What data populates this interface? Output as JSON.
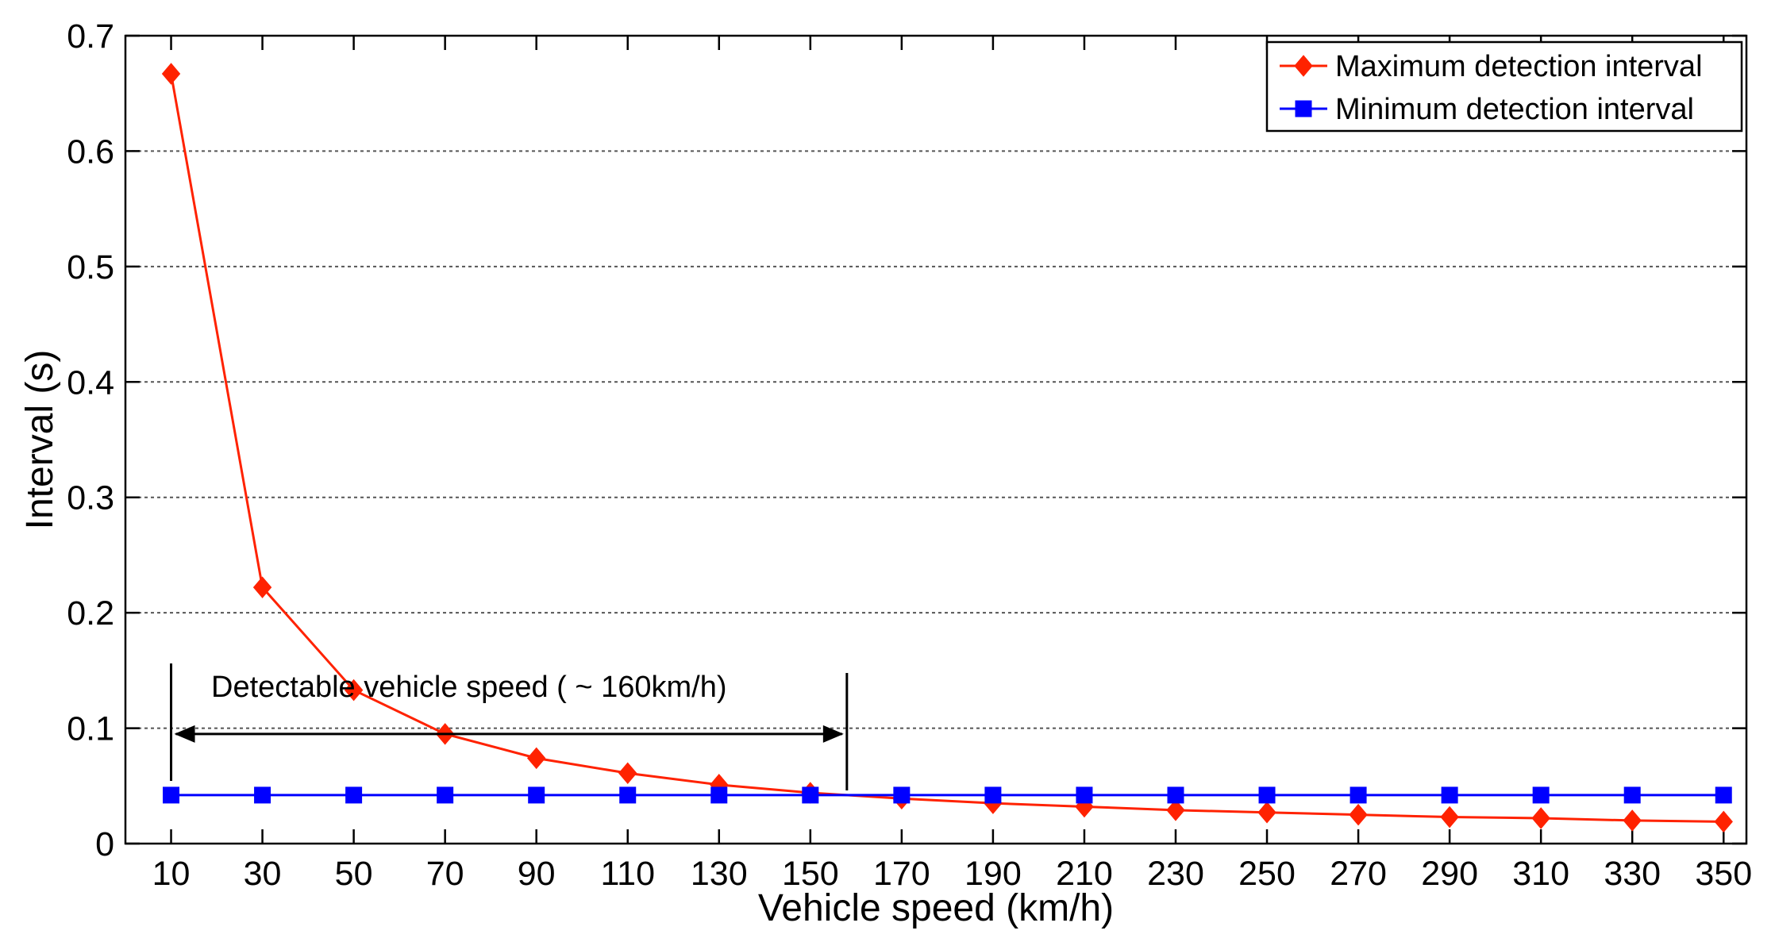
{
  "chart_data": {
    "type": "line",
    "title": "",
    "xlabel": "Vehicle speed (km/h)",
    "ylabel": "Interval (s)",
    "x": [
      10,
      30,
      50,
      70,
      90,
      110,
      130,
      150,
      170,
      190,
      210,
      230,
      250,
      270,
      290,
      310,
      330,
      350
    ],
    "xlim": [
      0,
      355
    ],
    "ylim": [
      0,
      0.7
    ],
    "x_ticks": [
      "10",
      "30",
      "50",
      "70",
      "90",
      "110",
      "130",
      "150",
      "170",
      "190",
      "210",
      "230",
      "250",
      "270",
      "290",
      "310",
      "330",
      "350"
    ],
    "y_ticks": [
      "0",
      "0.1",
      "0.2",
      "0.3",
      "0.4",
      "0.5",
      "0.6",
      "0.7"
    ],
    "grid": "horizontal dotted",
    "legend_position": "top-right",
    "series": [
      {
        "name": "Maximum detection interval",
        "color": "#ff2200",
        "marker": "diamond",
        "values": [
          0.667,
          0.222,
          0.133,
          0.095,
          0.074,
          0.061,
          0.051,
          0.044,
          0.039,
          0.035,
          0.032,
          0.029,
          0.027,
          0.025,
          0.023,
          0.022,
          0.02,
          0.019
        ]
      },
      {
        "name": "Minimum detection interval",
        "color": "#0000ff",
        "marker": "square",
        "values": [
          0.042,
          0.042,
          0.042,
          0.042,
          0.042,
          0.042,
          0.042,
          0.042,
          0.042,
          0.042,
          0.042,
          0.042,
          0.042,
          0.042,
          0.042,
          0.042,
          0.042,
          0.042
        ]
      }
    ],
    "annotation": {
      "text": "Detectable vehicle speed ( ~ 160km/h)",
      "x_start": 10,
      "x_end": 158,
      "arrow_y": 0.095
    }
  }
}
